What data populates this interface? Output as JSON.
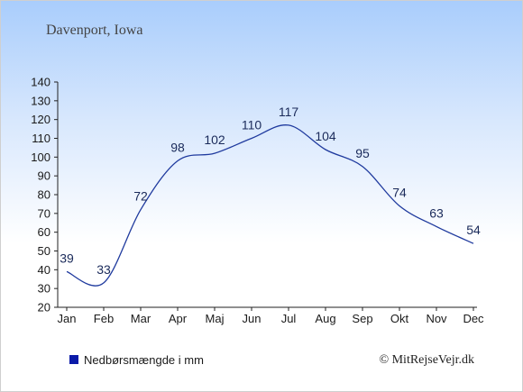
{
  "chart_data": {
    "type": "line",
    "title": "Davenport, Iowa",
    "categories": [
      "Jan",
      "Feb",
      "Mar",
      "Apr",
      "Maj",
      "Jun",
      "Jul",
      "Aug",
      "Sep",
      "Okt",
      "Nov",
      "Dec"
    ],
    "series": [
      {
        "name": "Nedbørsmængde i mm",
        "values": [
          39,
          33,
          72,
          98,
          102,
          110,
          117,
          104,
          95,
          74,
          63,
          54
        ]
      }
    ],
    "ylim": [
      20,
      140
    ],
    "yticks": [
      20,
      30,
      40,
      50,
      60,
      70,
      80,
      90,
      100,
      110,
      120,
      130,
      140
    ],
    "grid": false,
    "legend_position": "bottom-left",
    "line_color": "#1f3a9e",
    "legend_color": "#0a1aa8"
  },
  "credit": "© MitRejseVejr.dk"
}
